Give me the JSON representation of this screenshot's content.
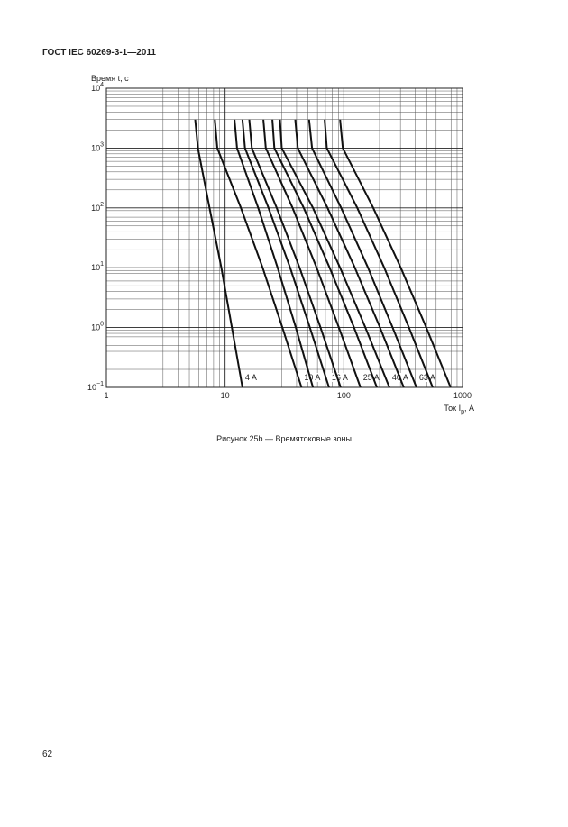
{
  "header": {
    "title": "ГОСТ IEC 60269-3-1—2011"
  },
  "chart_data": {
    "type": "line",
    "y_label": "Время t, с",
    "x_label": {
      "text": "Ток I",
      "sub": "p",
      "unit": ", А"
    },
    "xscale": "log",
    "yscale": "log",
    "grid": true,
    "xlim": [
      1,
      1000
    ],
    "ylim": [
      0.1,
      10000
    ],
    "xticks": [
      1,
      10,
      100,
      1000
    ],
    "yticks": [
      {
        "value": 0.1,
        "label": "10",
        "sup": "−1"
      },
      {
        "value": 1,
        "label": "10",
        "sup": "0"
      },
      {
        "value": 10,
        "label": "10",
        "sup": "1"
      },
      {
        "value": 100,
        "label": "10",
        "sup": "2"
      },
      {
        "value": 1000,
        "label": "10",
        "sup": "3"
      },
      {
        "value": 10000,
        "label": "10",
        "sup": "4"
      }
    ],
    "color": "#111111",
    "series": [
      {
        "name": "4 A",
        "x": [
          5.6,
          5.9,
          7.4,
          9.3,
          11.4,
          14
        ],
        "values": [
          3000,
          1000,
          100,
          10,
          1,
          0.1
        ]
      },
      {
        "name": "10 A",
        "x": [
          8.2,
          8.6,
          13.6,
          20.7,
          30.4,
          44
        ],
        "values": [
          3000,
          1000,
          100,
          10,
          1,
          0.1
        ]
      },
      {
        "x": [
          12,
          12.6,
          19,
          27.7,
          39.4,
          55
        ],
        "values": [
          3000,
          1000,
          100,
          10,
          1,
          0.1
        ]
      },
      {
        "name": "16 A",
        "x": [
          14,
          14.7,
          23.2,
          35.3,
          51.8,
          75
        ],
        "values": [
          3000,
          1000,
          100,
          10,
          1,
          0.1
        ]
      },
      {
        "x": [
          16,
          16.8,
          27.2,
          42.4,
          63.7,
          94
        ],
        "values": [
          3000,
          1000,
          100,
          10,
          1,
          0.1
        ]
      },
      {
        "name": "25 A",
        "x": [
          21,
          22,
          37,
          59,
          91,
          138
        ],
        "values": [
          3000,
          1000,
          100,
          10,
          1,
          0.1
        ]
      },
      {
        "x": [
          25,
          26,
          46,
          76,
          122,
          190
        ],
        "values": [
          3000,
          1000,
          100,
          10,
          1,
          0.1
        ]
      },
      {
        "name": "40 A",
        "x": [
          29,
          30,
          55,
          93,
          152,
          242
        ],
        "values": [
          3000,
          1000,
          100,
          10,
          1,
          0.1
        ]
      },
      {
        "x": [
          39,
          41,
          73,
          124,
          202,
          320
        ],
        "values": [
          3000,
          1000,
          100,
          10,
          1,
          0.1
        ]
      },
      {
        "name": "63 A",
        "x": [
          51,
          54,
          95,
          160,
          258,
          409
        ],
        "values": [
          3000,
          1000,
          100,
          10,
          1,
          0.1
        ]
      },
      {
        "x": [
          69,
          72,
          130,
          219,
          354,
          561
        ],
        "values": [
          3000,
          1000,
          100,
          10,
          1,
          0.1
        ]
      },
      {
        "x": [
          93,
          98,
          177,
          302,
          495,
          794
        ],
        "values": [
          3000,
          1000,
          100,
          10,
          1,
          0.1
        ]
      }
    ]
  },
  "caption": "Рисунок 25b — Времятоковые зоны",
  "page_number": "62"
}
